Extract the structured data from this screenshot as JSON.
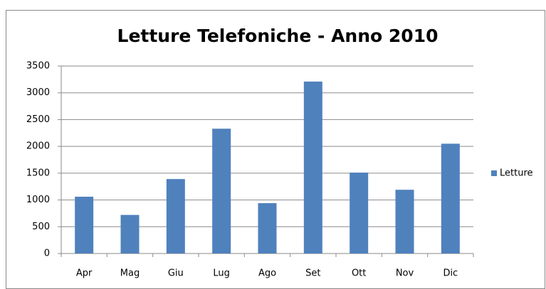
{
  "chart_data": {
    "type": "bar",
    "title": "Letture Telefoniche - Anno 2010",
    "categories": [
      "Apr",
      "Mag",
      "Giu",
      "Lug",
      "Ago",
      "Set",
      "Ott",
      "Nov",
      "Dic"
    ],
    "series": [
      {
        "name": "Letture",
        "color": "#4f81bd",
        "values": [
          1060,
          720,
          1390,
          2330,
          940,
          3210,
          1510,
          1190,
          2050
        ]
      }
    ],
    "ylim": [
      0,
      3500
    ],
    "yticks": [
      0,
      500,
      1000,
      1500,
      2000,
      2500,
      3000,
      3500
    ],
    "grid": true,
    "legend": "right"
  }
}
